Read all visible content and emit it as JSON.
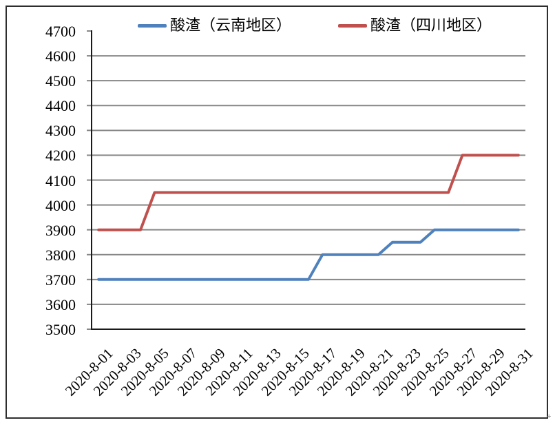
{
  "chart_data": {
    "type": "line",
    "title": "",
    "xlabel": "",
    "ylabel": "",
    "x": [
      "2020-8-01",
      "2020-8-02",
      "2020-8-03",
      "2020-8-04",
      "2020-8-05",
      "2020-8-06",
      "2020-8-07",
      "2020-8-08",
      "2020-8-09",
      "2020-8-10",
      "2020-8-11",
      "2020-8-12",
      "2020-8-13",
      "2020-8-14",
      "2020-8-15",
      "2020-8-16",
      "2020-8-17",
      "2020-8-18",
      "2020-8-19",
      "2020-8-20",
      "2020-8-21",
      "2020-8-22",
      "2020-8-23",
      "2020-8-24",
      "2020-8-25",
      "2020-8-26",
      "2020-8-27",
      "2020-8-28",
      "2020-8-29",
      "2020-8-30",
      "2020-8-31"
    ],
    "x_tick_every": 2,
    "x_tick_labels": [
      "2020-8-01",
      "2020-8-03",
      "2020-8-05",
      "2020-8-07",
      "2020-8-09",
      "2020-8-11",
      "2020-8-13",
      "2020-8-15",
      "2020-8-17",
      "2020-8-19",
      "2020-8-21",
      "2020-8-23",
      "2020-8-25",
      "2020-8-27",
      "2020-8-29",
      "2020-8-31"
    ],
    "series": [
      {
        "name": "酸渣（云南地区）",
        "color": "#4F81BD",
        "values": [
          3700,
          3700,
          3700,
          3700,
          3700,
          3700,
          3700,
          3700,
          3700,
          3700,
          3700,
          3700,
          3700,
          3700,
          3700,
          3700,
          3800,
          3800,
          3800,
          3800,
          3800,
          3850,
          3850,
          3850,
          3900,
          3900,
          3900,
          3900,
          3900,
          3900,
          3900
        ]
      },
      {
        "name": "酸渣（四川地区）",
        "color": "#C0504D",
        "values": [
          3900,
          3900,
          3900,
          3900,
          4050,
          4050,
          4050,
          4050,
          4050,
          4050,
          4050,
          4050,
          4050,
          4050,
          4050,
          4050,
          4050,
          4050,
          4050,
          4050,
          4050,
          4050,
          4050,
          4050,
          4050,
          4050,
          4200,
          4200,
          4200,
          4200,
          4200
        ]
      }
    ],
    "ylim": [
      3500,
      4700
    ],
    "ytick_step": 100,
    "grid": true,
    "legend_position": "top"
  },
  "legend": {
    "items": [
      {
        "label": "酸渣（云南地区）",
        "color": "#4F81BD"
      },
      {
        "label": "酸渣（四川地区）",
        "color": "#C0504D"
      }
    ]
  },
  "colors": {
    "series_yunnan": "#4F81BD",
    "series_sichuan": "#C0504D",
    "gridline": "#878787",
    "axis": "#1a1a1a",
    "frame": "#2e2e2e",
    "text": "#000000",
    "background": "#FFFFFF"
  },
  "decorations": {
    "corner_mark": "+"
  }
}
